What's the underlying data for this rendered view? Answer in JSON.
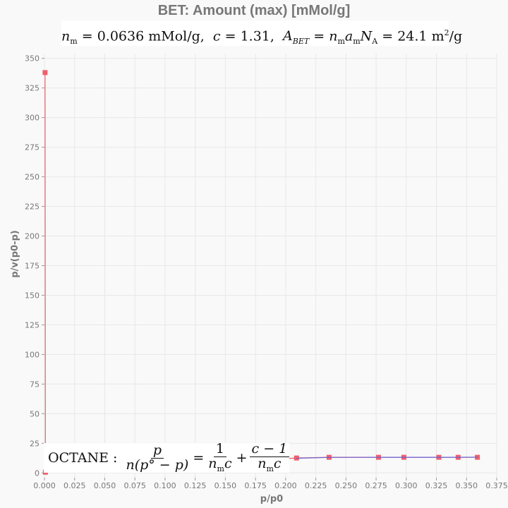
{
  "chart_data": {
    "type": "line",
    "title": "BET: Amount (max) [mMol/g]",
    "subtitle_fit": {
      "nm": "0.0636",
      "nm_unit": "mMol/g",
      "c": "1.31",
      "area": "24.1",
      "area_unit": "m",
      "area_unit_exp": "2",
      "area_unit_tail": "/g"
    },
    "xlabel": "p/p0",
    "ylabel": "p/v(p0-p)",
    "xlim": [
      0,
      0.375
    ],
    "ylim": [
      -4,
      354
    ],
    "x_ticks": [
      "0.000",
      "0.025",
      "0.050",
      "0.075",
      "0.100",
      "0.125",
      "0.150",
      "0.175",
      "0.200",
      "0.225",
      "0.250",
      "0.275",
      "0.300",
      "0.325",
      "0.350",
      "0.375"
    ],
    "y_ticks": [
      "0",
      "25",
      "50",
      "75",
      "100",
      "125",
      "150",
      "175",
      "200",
      "225",
      "250",
      "275",
      "300",
      "325",
      "350"
    ],
    "grid": true,
    "series": [
      {
        "kind": "data",
        "color": "#ef5f6b",
        "x": [
          0.0005,
          0.0008,
          0.209,
          0.236,
          0.277,
          0.298,
          0.327,
          0.343,
          0.359
        ],
        "y": [
          338,
          0.6,
          12.6,
          13.2,
          13.2,
          13.2,
          13.2,
          13.2,
          13.2
        ]
      },
      {
        "kind": "fit",
        "color": "#6a63d4",
        "x": [
          0.209,
          0.236,
          0.277,
          0.298,
          0.327,
          0.343,
          0.359
        ],
        "y": [
          12.4,
          13.1,
          13.2,
          13.2,
          13.2,
          13.2,
          13.3
        ]
      }
    ],
    "annotation": {
      "label": "OCTANE",
      "eq_p": "p",
      "eq_den": "n(p° − p)",
      "eq_one": "1",
      "eq_den2": "n",
      "eq_num3": "c − 1",
      "eq_den3": "n",
      "eq_p2": "p",
      "eq_p0": "p°"
    },
    "colors": {
      "background": "#f9f9f9",
      "grid": "#e8e8e8",
      "axis_text": "#777777",
      "title": "#777777"
    }
  }
}
